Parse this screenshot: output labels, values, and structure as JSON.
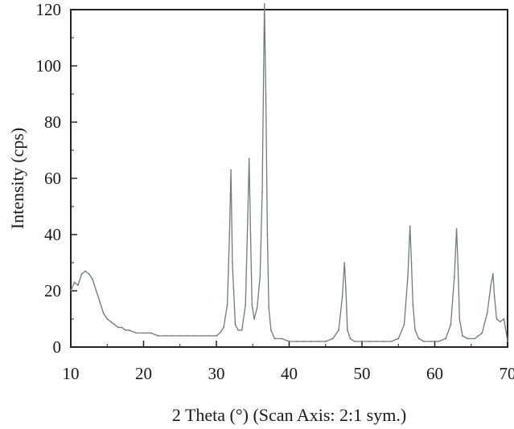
{
  "chart_data": {
    "type": "line",
    "title": "",
    "xlabel": "2 Theta (°) (Scan Axis: 2:1 sym.)",
    "ylabel": "Intensity (cps)",
    "xlim": [
      10,
      70
    ],
    "ylim": [
      0,
      120
    ],
    "xticks": [
      10,
      20,
      30,
      40,
      50,
      60,
      70
    ],
    "yticks": [
      0,
      20,
      40,
      60,
      80,
      100,
      120
    ],
    "grid": false,
    "legend": "none",
    "line_color": "#6e7b7b",
    "series": [
      {
        "x": [
          10.0,
          10.5,
          11.0,
          11.5,
          12.0,
          12.5,
          13.0,
          13.5,
          14.0,
          14.5,
          15.0,
          15.5,
          16.0,
          16.5,
          17.0,
          17.5,
          18.0,
          19.0,
          20.0,
          21.0,
          22.0,
          23.0,
          24.0,
          25.0,
          26.0,
          27.0,
          28.0,
          29.0,
          30.0,
          30.5,
          31.0,
          31.5,
          31.8,
          32.0,
          32.2,
          32.6,
          33.0,
          33.5,
          34.0,
          34.3,
          34.5,
          34.7,
          34.9,
          35.2,
          35.6,
          36.0,
          36.3,
          36.6,
          36.8,
          37.0,
          37.2,
          37.5,
          38.0,
          39.0,
          40.0,
          41.0,
          42.0,
          43.0,
          44.0,
          45.0,
          46.0,
          46.8,
          47.3,
          47.6,
          47.8,
          48.0,
          48.4,
          49.0,
          50.0,
          51.0,
          52.0,
          53.0,
          54.0,
          55.0,
          55.8,
          56.3,
          56.6,
          56.8,
          57.0,
          57.3,
          57.8,
          58.5,
          59.5,
          60.5,
          61.5,
          62.2,
          62.7,
          63.0,
          63.2,
          63.4,
          63.8,
          64.5,
          65.5,
          66.5,
          67.2,
          67.7,
          68.0,
          68.2,
          68.5,
          69.0,
          69.5,
          70.0
        ],
        "y": [
          20,
          23,
          22,
          26,
          27,
          26,
          24,
          20,
          16,
          12,
          10,
          9,
          8,
          7,
          7,
          6,
          6,
          5,
          5,
          5,
          4,
          4,
          4,
          4,
          4,
          4,
          4,
          4,
          4,
          5,
          7,
          15,
          40,
          63,
          30,
          8,
          6,
          6,
          15,
          45,
          67,
          40,
          15,
          10,
          14,
          25,
          55,
          122,
          90,
          40,
          14,
          6,
          3,
          3,
          2,
          2,
          2,
          2,
          2,
          2,
          3,
          6,
          18,
          30,
          20,
          6,
          3,
          2,
          2,
          2,
          2,
          2,
          2,
          3,
          8,
          25,
          43,
          30,
          15,
          6,
          3,
          2,
          2,
          2,
          3,
          8,
          25,
          42,
          28,
          10,
          4,
          3,
          3,
          5,
          12,
          22,
          26,
          18,
          10,
          9,
          10,
          2
        ]
      }
    ]
  }
}
